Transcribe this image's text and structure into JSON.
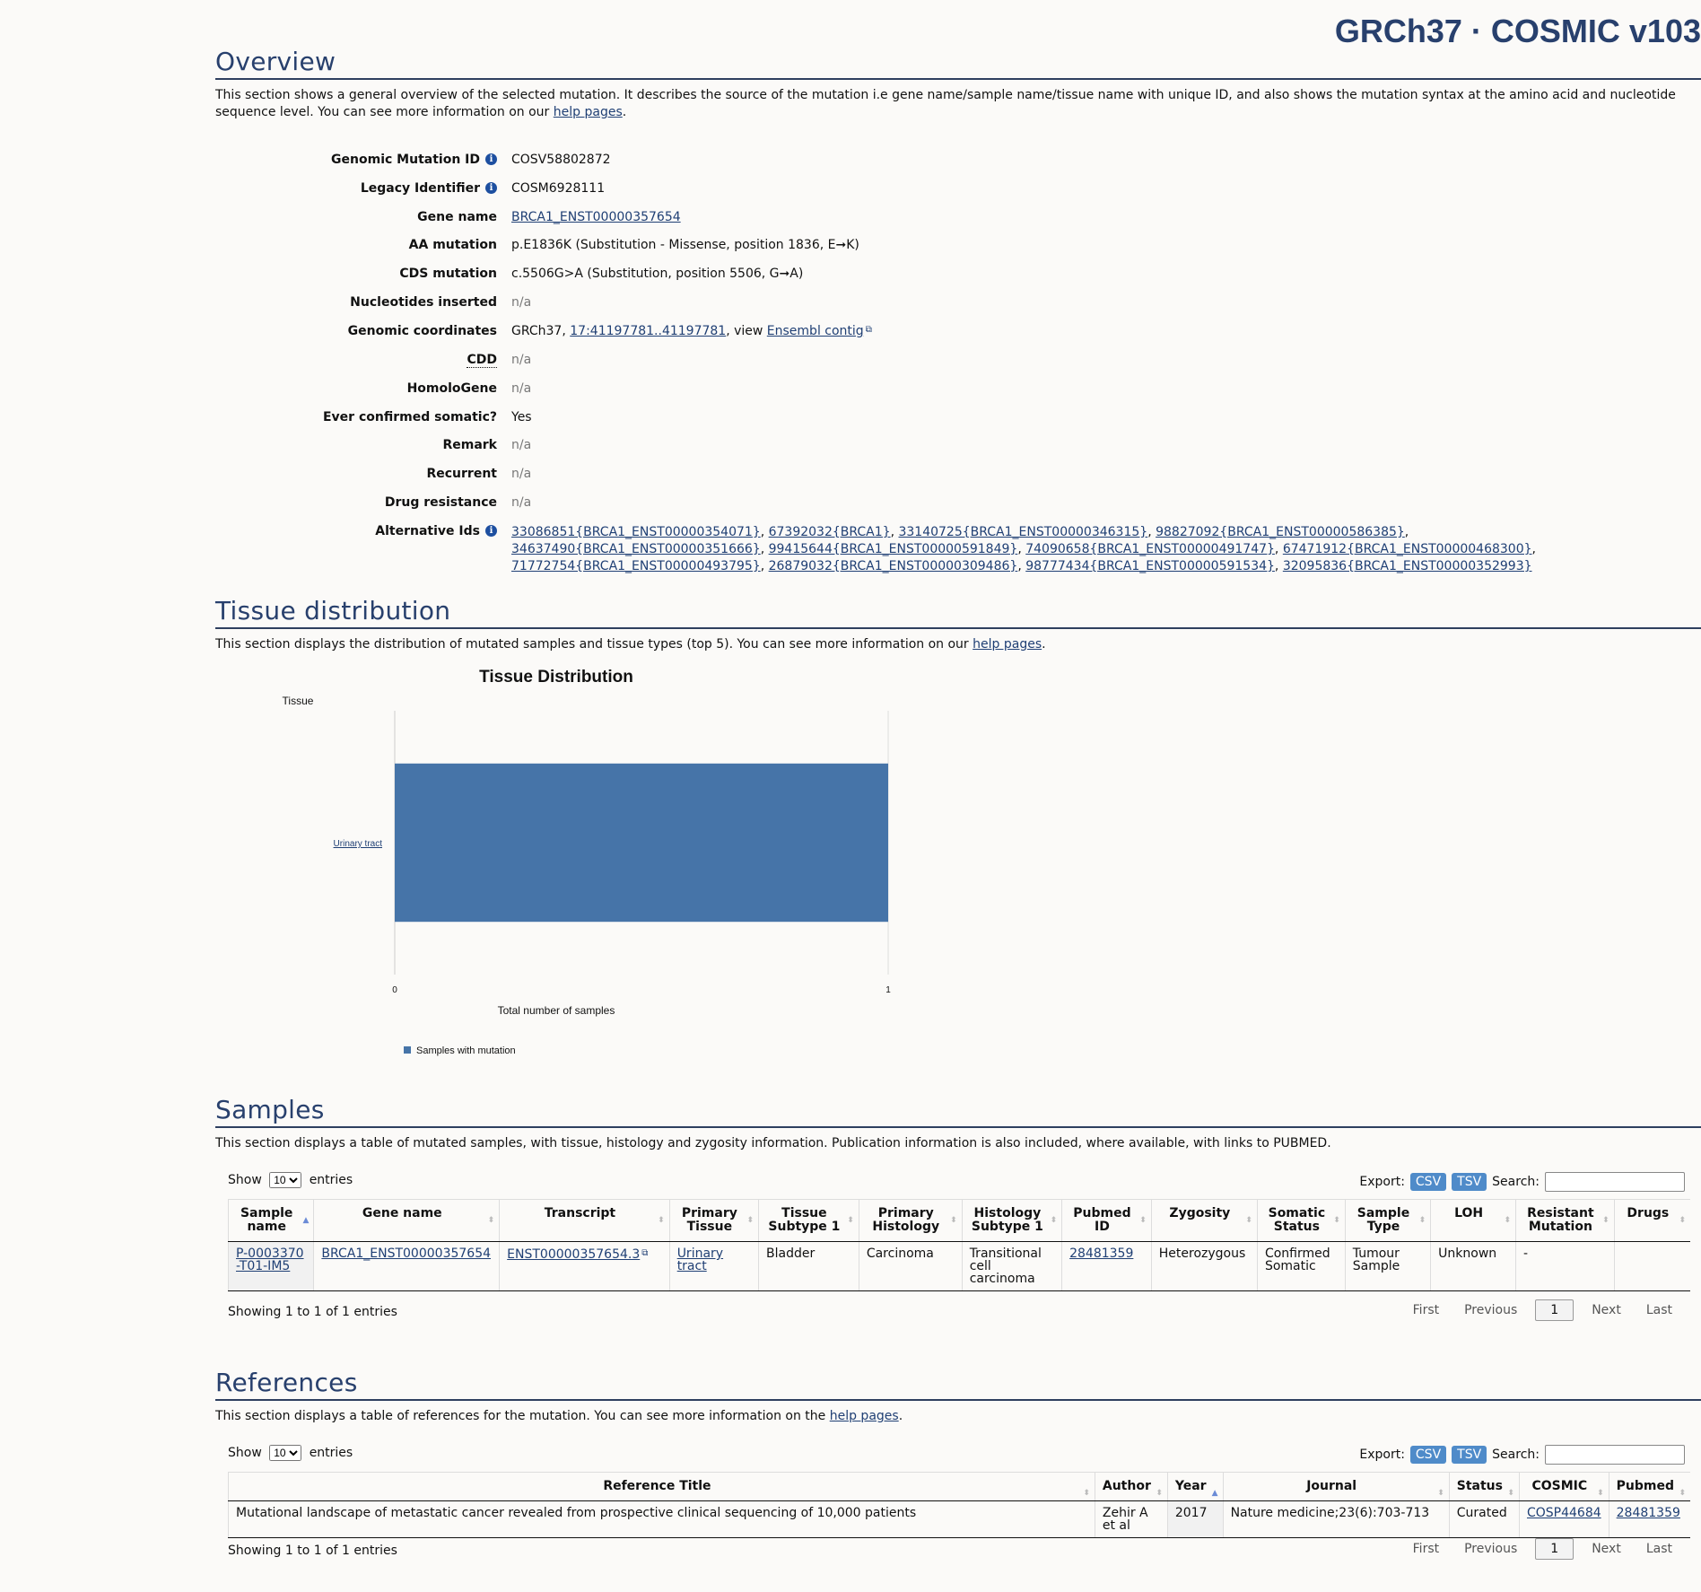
{
  "site_title": "GRCh37 · COSMIC v103",
  "overview": {
    "heading": "Overview",
    "desc_pre": "This section shows a general overview of the selected mutation. It describes the source of the mutation i.e gene name/sample name/tissue name with unique ID, and also shows the mutation syntax at the amino acid and nucleotide sequence level. You can see more information on our ",
    "desc_link": "help pages",
    "desc_post": ".",
    "rows": [
      {
        "label": "Genomic Mutation ID",
        "value": "COSV58802872"
      },
      {
        "label": "Legacy Identifier",
        "value": "COSM6928111"
      },
      {
        "label": "Gene name",
        "value": "BRCA1_ENST00000357654"
      },
      {
        "label": "AA mutation",
        "value": "p.E1836K (Substitution - Missense, position 1836, E➞K)"
      },
      {
        "label": "CDS mutation",
        "value": "c.5506G>A (Substitution, position 5506, G➞A)"
      },
      {
        "label": "Nucleotides inserted",
        "value": "n/a"
      },
      {
        "label": "Genomic coordinates",
        "value_pre": "GRCh37, ",
        "value_link": "17:41197781..41197781",
        "value_mid": ", view ",
        "value_link2": "Ensembl contig"
      },
      {
        "label": "CDD",
        "value": "n/a"
      },
      {
        "label": "HomoloGene",
        "value": "n/a"
      },
      {
        "label": "Ever confirmed somatic?",
        "value": "Yes"
      },
      {
        "label": "Remark",
        "value": "n/a"
      },
      {
        "label": "Recurrent",
        "value": "n/a"
      },
      {
        "label": "Drug resistance",
        "value": "n/a"
      },
      {
        "label": "Alternative Ids"
      }
    ],
    "alt_ids": [
      "33086851{BRCA1_ENST00000354071}",
      "67392032{BRCA1}",
      "33140725{BRCA1_ENST00000346315}",
      "98827092{BRCA1_ENST00000586385}",
      "34637490{BRCA1_ENST00000351666}",
      "99415644{BRCA1_ENST00000591849}",
      "74090658{BRCA1_ENST00000491747}",
      "67471912{BRCA1_ENST00000468300}",
      "71772754{BRCA1_ENST00000493795}",
      "26879032{BRCA1_ENST00000309486}",
      "98777434{BRCA1_ENST00000591534}",
      "32095836{BRCA1_ENST00000352993}"
    ]
  },
  "tissue": {
    "heading": "Tissue distribution",
    "desc_pre": "This section displays the distribution of mutated samples and tissue types (top 5). You can see more information on our ",
    "desc_link": "help pages",
    "desc_post": "."
  },
  "chart_data": {
    "type": "bar",
    "orientation": "horizontal",
    "title": "Tissue Distribution",
    "ylabel": "Tissue",
    "xlabel": "Total number of samples",
    "categories": [
      "Urinary tract"
    ],
    "series": [
      {
        "name": "Samples with mutation",
        "values": [
          1
        ],
        "color": "#4674a8"
      }
    ],
    "xlim": [
      0,
      1
    ],
    "x_ticks": [
      "0",
      "1"
    ],
    "legend_position": "bottom-left"
  },
  "samples": {
    "heading": "Samples",
    "desc": "This section displays a table of mutated samples, with tissue, histology and zygosity information. Publication information is also included, where available, with links to PUBMED.",
    "show_label": "Show",
    "show_value": "10",
    "entries_label": "entries",
    "export_label": "Export:",
    "csv": "CSV",
    "tsv": "TSV",
    "search_label": "Search:",
    "columns": [
      "Sample name",
      "Gene name",
      "Transcript",
      "Primary Tissue",
      "Tissue Subtype 1",
      "Primary Histology",
      "Histology Subtype 1",
      "Pubmed ID",
      "Zygosity",
      "Somatic Status",
      "Sample Type",
      "LOH",
      "Resistant Mutation",
      "Drugs"
    ],
    "row": {
      "sample": "P-0003370-T01-IM5",
      "gene": "BRCA1_ENST00000357654",
      "transcript": "ENST00000357654.3",
      "primary_tissue": "Urinary tract",
      "tissue_sub": "Bladder",
      "histology": "Carcinoma",
      "histology_sub": "Transitional cell carcinoma",
      "pubmed": "28481359",
      "zygosity": "Heterozygous",
      "somatic": "Confirmed Somatic",
      "sample_type": "Tumour Sample",
      "loh": "Unknown",
      "resistant": "-",
      "drugs": ""
    },
    "info": "Showing 1 to 1 of 1 entries",
    "pager": {
      "first": "First",
      "previous": "Previous",
      "page": "1",
      "next": "Next",
      "last": "Last"
    }
  },
  "references": {
    "heading": "References",
    "desc_pre": "This section displays a table of references for the mutation. You can see more information on the ",
    "desc_link": "help pages",
    "desc_post": ".",
    "show_label": "Show",
    "show_value": "10",
    "entries_label": "entries",
    "export_label": "Export:",
    "csv": "CSV",
    "tsv": "TSV",
    "search_label": "Search:",
    "columns": [
      "Reference Title",
      "Author",
      "Year",
      "Journal",
      "Status",
      "COSMIC",
      "Pubmed"
    ],
    "row": {
      "title": "Mutational landscape of metastatic cancer revealed from prospective clinical sequencing of 10,000 patients",
      "author": "Zehir A et al",
      "year": "2017",
      "journal": "Nature medicine;23(6):703-713",
      "status": "Curated",
      "cosmic": "COSP44684",
      "pubmed": "28481359"
    },
    "info": "Showing 1 to 1 of 1 entries",
    "pager": {
      "first": "First",
      "previous": "Previous",
      "page": "1",
      "next": "Next",
      "last": "Last"
    }
  }
}
